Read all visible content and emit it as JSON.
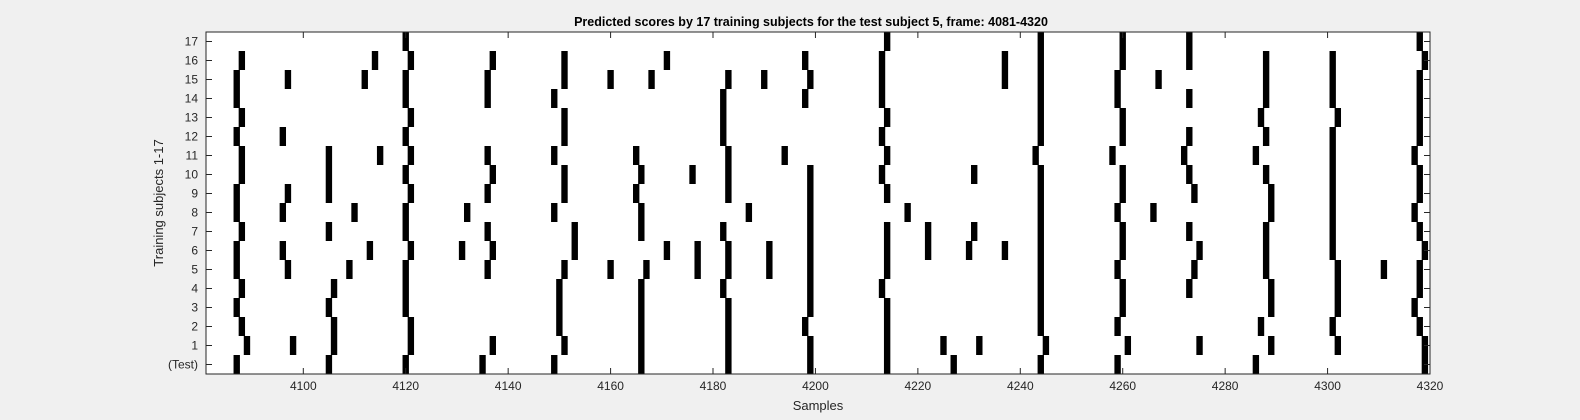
{
  "chart_data": {
    "type": "heatmap",
    "title": "Predicted scores by 17 training subjects for the test subject 5, frame: 4081-4320",
    "xlabel": "Samples",
    "ylabel": "Training subjects 1-17",
    "xlim": [
      4081,
      4320
    ],
    "x_ticks": [
      4100,
      4120,
      4140,
      4160,
      4180,
      4200,
      4220,
      4240,
      4260,
      4280,
      4300,
      4320
    ],
    "y_tick_labels": [
      "(Test)",
      "1",
      "2",
      "3",
      "4",
      "5",
      "6",
      "7",
      "8",
      "9",
      "10",
      "11",
      "12",
      "13",
      "14",
      "15",
      "16",
      "17"
    ],
    "grid": false,
    "colors": {
      "mark": "#000000",
      "background": "#ffffff",
      "axes": "#262626"
    },
    "rows": [
      {
        "label": "(Test)",
        "marks": [
          4087,
          4105,
          4120,
          4135,
          4149,
          4166,
          4183,
          4199,
          4214,
          4227,
          4244,
          4259,
          4286,
          4319
        ]
      },
      {
        "label": "1",
        "marks": [
          4089,
          4098,
          4106,
          4121,
          4137,
          4151,
          4166,
          4183,
          4199,
          4214,
          4225,
          4232,
          4245,
          4261,
          4275,
          4289,
          4302,
          4319
        ]
      },
      {
        "label": "2",
        "marks": [
          4088,
          4106,
          4121,
          4150,
          4166,
          4183,
          4198,
          4214,
          4244,
          4259,
          4287,
          4301,
          4318
        ]
      },
      {
        "label": "3",
        "marks": [
          4087,
          4105,
          4120,
          4150,
          4166,
          4183,
          4199,
          4214,
          4244,
          4260,
          4289,
          4302,
          4317
        ]
      },
      {
        "label": "4",
        "marks": [
          4088,
          4106,
          4120,
          4150,
          4166,
          4182,
          4199,
          4213,
          4244,
          4260,
          4273,
          4289,
          4302,
          4318
        ]
      },
      {
        "label": "5",
        "marks": [
          4087,
          4097,
          4109,
          4120,
          4136,
          4151,
          4160,
          4167,
          4177,
          4183,
          4191,
          4199,
          4214,
          4244,
          4259,
          4274,
          4288,
          4302,
          4311,
          4318
        ]
      },
      {
        "label": "6",
        "marks": [
          4087,
          4096,
          4113,
          4121,
          4131,
          4137,
          4153,
          4171,
          4177,
          4183,
          4191,
          4199,
          4214,
          4222,
          4230,
          4237,
          4244,
          4260,
          4275,
          4288,
          4301,
          4319
        ]
      },
      {
        "label": "7",
        "marks": [
          4088,
          4105,
          4120,
          4136,
          4153,
          4166,
          4182,
          4199,
          4214,
          4222,
          4231,
          4244,
          4260,
          4273,
          4288,
          4301,
          4318
        ]
      },
      {
        "label": "8",
        "marks": [
          4087,
          4096,
          4110,
          4120,
          4132,
          4149,
          4166,
          4187,
          4199,
          4218,
          4244,
          4259,
          4266,
          4289,
          4301,
          4317
        ]
      },
      {
        "label": "9",
        "marks": [
          4087,
          4097,
          4105,
          4121,
          4136,
          4151,
          4165,
          4183,
          4199,
          4214,
          4244,
          4260,
          4274,
          4289,
          4301,
          4318
        ]
      },
      {
        "label": "10",
        "marks": [
          4088,
          4105,
          4120,
          4137,
          4151,
          4166,
          4176,
          4183,
          4199,
          4213,
          4231,
          4244,
          4260,
          4273,
          4288,
          4301,
          4318
        ]
      },
      {
        "label": "11",
        "marks": [
          4088,
          4105,
          4115,
          4121,
          4136,
          4149,
          4165,
          4183,
          4194,
          4214,
          4243,
          4258,
          4272,
          4286,
          4301,
          4317
        ]
      },
      {
        "label": "12",
        "marks": [
          4087,
          4096,
          4120,
          4151,
          4182,
          4213,
          4244,
          4260,
          4273,
          4288,
          4301,
          4318
        ]
      },
      {
        "label": "13",
        "marks": [
          4088,
          4121,
          4151,
          4182,
          4214,
          4244,
          4260,
          4287,
          4302,
          4318
        ]
      },
      {
        "label": "14",
        "marks": [
          4087,
          4120,
          4136,
          4149,
          4182,
          4198,
          4213,
          4244,
          4259,
          4273,
          4288,
          4301,
          4318
        ]
      },
      {
        "label": "15",
        "marks": [
          4087,
          4097,
          4112,
          4120,
          4136,
          4151,
          4160,
          4168,
          4183,
          4190,
          4199,
          4213,
          4237,
          4244,
          4259,
          4267,
          4288,
          4301,
          4318
        ]
      },
      {
        "label": "16",
        "marks": [
          4088,
          4114,
          4121,
          4137,
          4151,
          4171,
          4198,
          4213,
          4237,
          4244,
          4260,
          4273,
          4288,
          4301,
          4319
        ]
      },
      {
        "label": "17",
        "marks": [
          4120,
          4214,
          4244,
          4260,
          4273,
          4318
        ]
      }
    ]
  }
}
